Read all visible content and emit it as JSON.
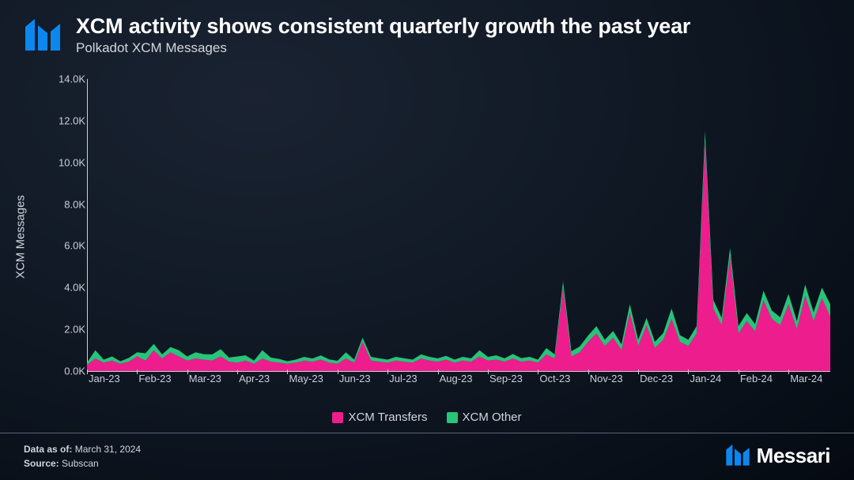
{
  "header": {
    "title": "XCM activity shows consistent quarterly growth the past year",
    "subtitle": "Polkadot XCM Messages"
  },
  "chart": {
    "type": "stacked-area",
    "y_axis_label": "XCM Messages",
    "ylim": [
      0,
      14000
    ],
    "ytick_step": 2000,
    "ytick_labels": [
      "0.0K",
      "2.0K",
      "4.0K",
      "6.0K",
      "8.0K",
      "10.0K",
      "12.0K",
      "14.0K"
    ],
    "x_categories": [
      "Jan-23",
      "Feb-23",
      "Mar-23",
      "Apr-23",
      "May-23",
      "Jun-23",
      "Jul-23",
      "Aug-23",
      "Sep-23",
      "Oct-23",
      "Nov-23",
      "Dec-23",
      "Jan-24",
      "Feb-24",
      "Mar-24"
    ],
    "n_points": 90,
    "series": [
      {
        "name": "XCM Transfers",
        "color": "#ee1d8d",
        "values": [
          300,
          600,
          400,
          500,
          350,
          450,
          700,
          500,
          1000,
          600,
          900,
          700,
          500,
          600,
          550,
          500,
          700,
          450,
          400,
          500,
          350,
          600,
          450,
          400,
          350,
          400,
          500,
          450,
          550,
          400,
          350,
          600,
          400,
          1400,
          500,
          450,
          400,
          500,
          450,
          400,
          600,
          500,
          450,
          550,
          400,
          500,
          450,
          700,
          500,
          550,
          450,
          600,
          450,
          500,
          400,
          800,
          600,
          4000,
          700,
          900,
          1400,
          1800,
          1200,
          1600,
          1000,
          2800,
          1200,
          2200,
          1100,
          1500,
          2500,
          1400,
          1200,
          1800,
          11000,
          3000,
          2200,
          5500,
          1800,
          2400,
          1900,
          3400,
          2500,
          2200,
          3200,
          2000,
          3600,
          2400,
          3500,
          2600
        ]
      },
      {
        "name": "XCM Other",
        "color": "#27c47a",
        "values": [
          100,
          400,
          150,
          200,
          120,
          180,
          200,
          350,
          300,
          200,
          250,
          300,
          200,
          300,
          260,
          300,
          350,
          200,
          300,
          250,
          150,
          400,
          200,
          180,
          120,
          150,
          180,
          150,
          200,
          160,
          140,
          300,
          150,
          200,
          180,
          160,
          150,
          180,
          160,
          150,
          200,
          180,
          160,
          180,
          150,
          180,
          160,
          300,
          180,
          200,
          160,
          220,
          170,
          180,
          150,
          300,
          200,
          300,
          250,
          280,
          300,
          350,
          300,
          320,
          280,
          400,
          300,
          350,
          300,
          320,
          500,
          320,
          300,
          350,
          500,
          400,
          350,
          400,
          350,
          380,
          350,
          450,
          400,
          380,
          500,
          400,
          550,
          420,
          500,
          600
        ]
      }
    ],
    "background_color": "transparent",
    "axis_color": "#c9cfd6",
    "label_fontsize": 13,
    "title_fontsize": 27
  },
  "legend": {
    "items": [
      {
        "label": "XCM Transfers",
        "color": "#ee1d8d"
      },
      {
        "label": "XCM Other",
        "color": "#27c47a"
      }
    ]
  },
  "footer": {
    "data_as_of_label": "Data as of:",
    "data_as_of_value": "March 31, 2024",
    "source_label": "Source:",
    "source_value": "Subscan",
    "brand": "Messari"
  },
  "brand_color": "#0b88f0"
}
